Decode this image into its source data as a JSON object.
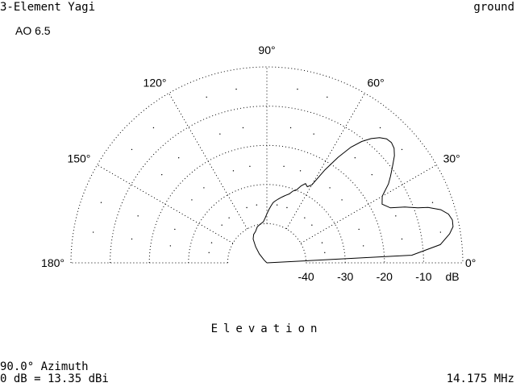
{
  "header": {
    "title": "3-Element Yagi",
    "ground": "ground",
    "program": "AO 6.5"
  },
  "footer": {
    "azimuth": "90.0° Azimuth",
    "reference": "0 dB = 13.35 dBi",
    "frequency": "14.175 MHz"
  },
  "chart_data": {
    "type": "line",
    "plot_style": "polar-elevation",
    "xlabel": "Elevation",
    "angle_tick_labels": [
      "0°",
      "30°",
      "60°",
      "90°",
      "120°",
      "150°",
      "180°"
    ],
    "angle_ticks_deg": [
      0,
      30,
      60,
      90,
      120,
      150,
      180
    ],
    "radial_tick_labels": [
      "-40",
      "-30",
      "-20",
      "-10",
      "dB"
    ],
    "radial_ticks_db": [
      -40,
      -30,
      -20,
      -10
    ],
    "radial_range_db": [
      -50,
      0
    ],
    "grid": true,
    "series": [
      {
        "angle_deg": [
          0,
          3,
          6,
          9,
          11,
          13,
          15,
          17,
          19,
          20,
          22,
          24,
          27,
          30,
          33,
          35,
          37,
          38,
          40,
          42,
          44,
          46,
          48,
          50,
          52,
          54,
          56,
          58,
          60,
          62,
          64,
          66,
          68,
          70,
          72,
          74,
          76,
          78,
          80,
          82,
          84,
          86,
          88,
          90,
          92,
          95,
          100,
          105,
          110,
          115,
          120,
          125,
          130,
          135,
          140,
          145,
          150,
          155,
          160,
          165,
          170,
          175,
          180
        ],
        "gain_db": [
          -50,
          -13,
          -5.5,
          -2.8,
          -1.6,
          -1.4,
          -2.0,
          -3.6,
          -6.5,
          -9,
          -12,
          -15.5,
          -17,
          -16,
          -13,
          -11.5,
          -10,
          -9.2,
          -7.5,
          -6.3,
          -5.8,
          -6,
          -7,
          -8.6,
          -10.7,
          -13.5,
          -17.5,
          -22,
          -27,
          -28,
          -27.5,
          -28.5,
          -30,
          -30.5,
          -31.5,
          -32,
          -32.5,
          -33,
          -33.5,
          -34,
          -34.5,
          -35.5,
          -36.5,
          -37.5,
          -38.5,
          -39.5,
          -40,
          -40.5,
          -41.5,
          -42,
          -43,
          -45,
          -47,
          -49,
          -50,
          -50,
          -50,
          -50,
          -50,
          -50,
          -50,
          -50,
          -50
        ]
      }
    ]
  }
}
